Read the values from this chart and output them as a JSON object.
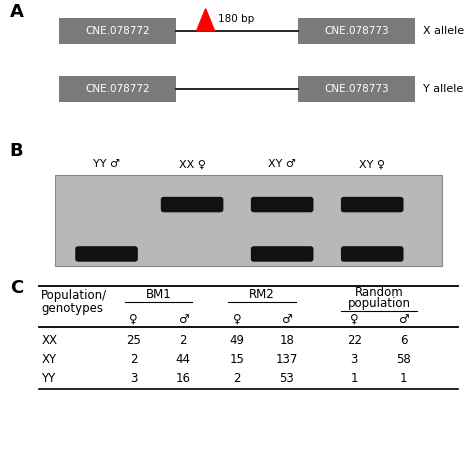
{
  "panel_A": {
    "box1_label": "CNE.078772",
    "box2_label": "CNE.078773",
    "allele_X_label": "X allele",
    "allele_Y_label": "Y allele",
    "indel_label": "180 bp",
    "box_color": "#7a7a7a",
    "box_text_color": "white",
    "arrow_color": "red"
  },
  "panel_B": {
    "lane_labels": [
      "YY ♂",
      "XX ♀",
      "XY ♂",
      "XY ♀"
    ],
    "bg_color": "#b8b8b8",
    "band_color": "#111111",
    "upper_bands": [
      false,
      true,
      true,
      true
    ],
    "lower_bands": [
      true,
      false,
      true,
      true
    ]
  },
  "panel_C": {
    "row_labels": [
      "XX",
      "XY",
      "YY"
    ],
    "data": [
      [
        25,
        2,
        49,
        18,
        22,
        6
      ],
      [
        2,
        44,
        15,
        137,
        3,
        58
      ],
      [
        3,
        16,
        2,
        53,
        1,
        1
      ]
    ],
    "group_labels": [
      "BM1",
      "RM2",
      "Random\npopulation"
    ],
    "population_label": "Population/\ngenotypes"
  },
  "fig_width": 4.74,
  "fig_height": 4.55,
  "dpi": 100
}
